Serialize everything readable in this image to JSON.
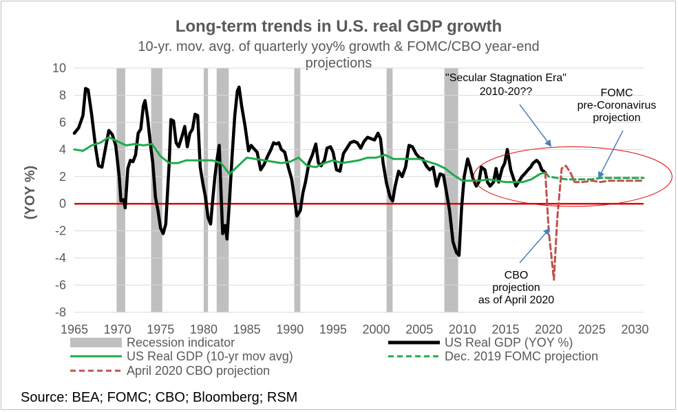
{
  "chart_data": {
    "type": "line",
    "title": "Long-term trends in U.S. real GDP growth",
    "subtitle_line1": "10-yr. mov. avg. of quarterly yoy% growth & FOMC/CBO year-end",
    "subtitle_line2": "projections",
    "ylabel": "(YOY %)",
    "xlim": [
      1965,
      2031
    ],
    "ylim": [
      -8,
      10
    ],
    "x_ticks": [
      1965,
      1970,
      1975,
      1980,
      1985,
      1990,
      1995,
      2000,
      2005,
      2010,
      2015,
      2020,
      2025,
      2030
    ],
    "y_ticks": [
      10,
      8,
      6,
      4,
      2,
      0,
      -2,
      -4,
      -6,
      -8
    ],
    "grid": "horizontal",
    "legend_position": "bottom",
    "colors": {
      "recession": "#bfbfbf",
      "gdp": "#000000",
      "movavg": "#1faa4b",
      "fomc": "#1faa4b",
      "cbo": "#c0504d",
      "zero_line": "#e00000",
      "gridline": "#d9d9d9",
      "ellipse": "#e00000",
      "arrow": "#4a7ebb"
    },
    "recessions": [
      [
        1969.9,
        1970.9
      ],
      [
        1973.9,
        1975.2
      ],
      [
        1980.0,
        1980.5
      ],
      [
        1981.5,
        1982.9
      ],
      [
        1990.5,
        1991.2
      ],
      [
        2001.2,
        2001.9
      ],
      [
        2007.9,
        2009.5
      ]
    ],
    "series": [
      {
        "name": "US Real GDP (YOY %)",
        "style": "solid-thick",
        "points": [
          [
            1965,
            5.2
          ],
          [
            1965.5,
            5.6
          ],
          [
            1966,
            6.5
          ],
          [
            1966.3,
            8.5
          ],
          [
            1966.6,
            8.4
          ],
          [
            1967,
            6.6
          ],
          [
            1967.5,
            4.0
          ],
          [
            1967.8,
            2.8
          ],
          [
            1968.2,
            2.7
          ],
          [
            1968.7,
            4.4
          ],
          [
            1969.0,
            5.4
          ],
          [
            1969.4,
            5.1
          ],
          [
            1969.8,
            4.3
          ],
          [
            1970.2,
            2.0
          ],
          [
            1970.4,
            0.2
          ],
          [
            1970.7,
            0.3
          ],
          [
            1970.9,
            -0.3
          ],
          [
            1971.2,
            2.6
          ],
          [
            1971.5,
            3.2
          ],
          [
            1971.8,
            3.1
          ],
          [
            1972.1,
            3.6
          ],
          [
            1972.4,
            5.2
          ],
          [
            1972.7,
            5.5
          ],
          [
            1973.0,
            7.2
          ],
          [
            1973.2,
            7.6
          ],
          [
            1973.5,
            6.3
          ],
          [
            1973.8,
            4.5
          ],
          [
            1974.1,
            3.0
          ],
          [
            1974.4,
            0.5
          ],
          [
            1974.7,
            -0.5
          ],
          [
            1975.0,
            -1.8
          ],
          [
            1975.3,
            -2.2
          ],
          [
            1975.6,
            -1.5
          ],
          [
            1976.0,
            3.0
          ],
          [
            1976.2,
            6.2
          ],
          [
            1976.5,
            6.1
          ],
          [
            1976.8,
            4.5
          ],
          [
            1977.1,
            4.2
          ],
          [
            1977.5,
            5.0
          ],
          [
            1977.8,
            5.7
          ],
          [
            1978.1,
            4.2
          ],
          [
            1978.4,
            5.2
          ],
          [
            1978.7,
            5.5
          ],
          [
            1979.0,
            6.6
          ],
          [
            1979.3,
            6.5
          ],
          [
            1979.6,
            2.7
          ],
          [
            1979.9,
            1.5
          ],
          [
            1980.2,
            0.5
          ],
          [
            1980.5,
            -1.0
          ],
          [
            1980.8,
            -1.5
          ],
          [
            1981.0,
            0.0
          ],
          [
            1981.3,
            2.0
          ],
          [
            1981.6,
            3.5
          ],
          [
            1981.8,
            4.3
          ],
          [
            1982.0,
            1.0
          ],
          [
            1982.2,
            -2.2
          ],
          [
            1982.5,
            -1.6
          ],
          [
            1982.7,
            -2.6
          ],
          [
            1983.0,
            0.3
          ],
          [
            1983.3,
            3.6
          ],
          [
            1983.6,
            6.5
          ],
          [
            1983.9,
            8.3
          ],
          [
            1984.1,
            8.6
          ],
          [
            1984.4,
            7.2
          ],
          [
            1984.8,
            5.7
          ],
          [
            1985.2,
            3.9
          ],
          [
            1985.5,
            4.3
          ],
          [
            1985.9,
            4.0
          ],
          [
            1986.2,
            3.8
          ],
          [
            1986.6,
            2.5
          ],
          [
            1987.0,
            2.9
          ],
          [
            1987.4,
            3.5
          ],
          [
            1987.8,
            4.0
          ],
          [
            1988.1,
            4.5
          ],
          [
            1988.4,
            4.4
          ],
          [
            1988.7,
            4.5
          ],
          [
            1989.0,
            4.0
          ],
          [
            1989.4,
            3.8
          ],
          [
            1989.8,
            2.7
          ],
          [
            1990.2,
            1.8
          ],
          [
            1990.5,
            0.5
          ],
          [
            1990.8,
            -0.9
          ],
          [
            1991.2,
            -0.5
          ],
          [
            1991.5,
            0.8
          ],
          [
            1991.8,
            1.6
          ],
          [
            1992.2,
            3.0
          ],
          [
            1992.6,
            3.6
          ],
          [
            1993.0,
            4.4
          ],
          [
            1993.3,
            3.0
          ],
          [
            1993.6,
            2.8
          ],
          [
            1994.0,
            3.2
          ],
          [
            1994.3,
            4.1
          ],
          [
            1994.7,
            4.2
          ],
          [
            1995.0,
            3.8
          ],
          [
            1995.4,
            2.5
          ],
          [
            1995.8,
            2.4
          ],
          [
            1996.2,
            3.7
          ],
          [
            1996.6,
            4.1
          ],
          [
            1997.0,
            4.5
          ],
          [
            1997.4,
            4.6
          ],
          [
            1997.8,
            4.5
          ],
          [
            1998.2,
            4.1
          ],
          [
            1998.6,
            4.6
          ],
          [
            1999.0,
            4.9
          ],
          [
            1999.4,
            4.8
          ],
          [
            1999.8,
            4.7
          ],
          [
            2000.2,
            5.2
          ],
          [
            2000.5,
            4.8
          ],
          [
            2000.8,
            3.0
          ],
          [
            2001.2,
            1.5
          ],
          [
            2001.6,
            0.5
          ],
          [
            2001.9,
            0.2
          ],
          [
            2002.2,
            1.3
          ],
          [
            2002.6,
            2.4
          ],
          [
            2003.0,
            2.0
          ],
          [
            2003.4,
            2.7
          ],
          [
            2003.8,
            4.3
          ],
          [
            2004.2,
            4.2
          ],
          [
            2004.6,
            3.7
          ],
          [
            2005.0,
            3.4
          ],
          [
            2005.4,
            3.3
          ],
          [
            2005.8,
            2.8
          ],
          [
            2006.2,
            2.5
          ],
          [
            2006.6,
            2.7
          ],
          [
            2007.0,
            1.3
          ],
          [
            2007.4,
            2.2
          ],
          [
            2007.8,
            2.1
          ],
          [
            2008.1,
            1.0
          ],
          [
            2008.5,
            -0.5
          ],
          [
            2008.9,
            -2.8
          ],
          [
            2009.3,
            -3.6
          ],
          [
            2009.6,
            -3.8
          ],
          [
            2009.9,
            -0.3
          ],
          [
            2010.2,
            2.0
          ],
          [
            2010.6,
            3.3
          ],
          [
            2010.9,
            2.7
          ],
          [
            2011.2,
            1.9
          ],
          [
            2011.6,
            1.3
          ],
          [
            2011.9,
            1.6
          ],
          [
            2012.2,
            2.7
          ],
          [
            2012.6,
            2.5
          ],
          [
            2012.9,
            1.6
          ],
          [
            2013.2,
            1.3
          ],
          [
            2013.6,
            1.6
          ],
          [
            2013.9,
            2.6
          ],
          [
            2014.2,
            1.6
          ],
          [
            2014.6,
            2.6
          ],
          [
            2014.9,
            3.0
          ],
          [
            2015.2,
            4.0
          ],
          [
            2015.6,
            2.5
          ],
          [
            2015.9,
            1.9
          ],
          [
            2016.2,
            1.3
          ],
          [
            2016.6,
            1.7
          ],
          [
            2016.9,
            2.0
          ],
          [
            2017.2,
            2.2
          ],
          [
            2017.6,
            2.5
          ],
          [
            2017.9,
            2.7
          ],
          [
            2018.2,
            3.0
          ],
          [
            2018.6,
            3.2
          ],
          [
            2018.9,
            3.0
          ],
          [
            2019.2,
            2.5
          ],
          [
            2019.6,
            2.3
          ]
        ]
      },
      {
        "name": "US Real GDP (10-yr mov avg)",
        "style": "solid",
        "points": [
          [
            1965,
            4.0
          ],
          [
            1966,
            3.9
          ],
          [
            1967,
            4.3
          ],
          [
            1968,
            4.5
          ],
          [
            1969,
            4.9
          ],
          [
            1970,
            4.6
          ],
          [
            1971,
            4.3
          ],
          [
            1972,
            4.4
          ],
          [
            1973,
            4.3
          ],
          [
            1974,
            4.4
          ],
          [
            1975,
            3.5
          ],
          [
            1976,
            3.0
          ],
          [
            1977,
            3.0
          ],
          [
            1978,
            3.2
          ],
          [
            1979,
            3.2
          ],
          [
            1980,
            3.2
          ],
          [
            1981,
            3.2
          ],
          [
            1982,
            3.0
          ],
          [
            1983,
            2.2
          ],
          [
            1984,
            2.8
          ],
          [
            1985,
            3.4
          ],
          [
            1986,
            3.3
          ],
          [
            1987,
            3.2
          ],
          [
            1988,
            3.1
          ],
          [
            1989,
            3.0
          ],
          [
            1990,
            3.1
          ],
          [
            1991,
            3.4
          ],
          [
            1992,
            2.8
          ],
          [
            1993,
            2.7
          ],
          [
            1994,
            3.0
          ],
          [
            1995,
            3.2
          ],
          [
            1996,
            3.0
          ],
          [
            1997,
            3.1
          ],
          [
            1998,
            3.2
          ],
          [
            1999,
            3.4
          ],
          [
            2000,
            3.4
          ],
          [
            2001,
            3.6
          ],
          [
            2002,
            3.3
          ],
          [
            2003,
            3.3
          ],
          [
            2004,
            3.3
          ],
          [
            2005,
            3.3
          ],
          [
            2006,
            3.1
          ],
          [
            2007,
            2.9
          ],
          [
            2008,
            2.6
          ],
          [
            2009,
            2.1
          ],
          [
            2010,
            1.7
          ],
          [
            2011,
            1.7
          ],
          [
            2012,
            1.7
          ],
          [
            2013,
            1.8
          ],
          [
            2014,
            1.7
          ],
          [
            2015,
            1.6
          ],
          [
            2016,
            1.6
          ],
          [
            2017,
            1.6
          ],
          [
            2018,
            1.8
          ],
          [
            2019,
            2.2
          ],
          [
            2019.6,
            2.3
          ]
        ]
      },
      {
        "name": "Dec. 2019 FOMC projection",
        "style": "dashed",
        "points": [
          [
            2019.6,
            2.3
          ],
          [
            2020,
            2.0
          ],
          [
            2021,
            1.9
          ],
          [
            2022,
            1.8
          ],
          [
            2023,
            1.8
          ],
          [
            2024,
            1.8
          ],
          [
            2025,
            1.8
          ],
          [
            2026,
            1.9
          ],
          [
            2027,
            1.9
          ],
          [
            2028,
            1.9
          ],
          [
            2029,
            1.9
          ],
          [
            2030,
            1.9
          ],
          [
            2031,
            1.9
          ]
        ]
      },
      {
        "name": "April 2020 CBO projection",
        "style": "dashed",
        "points": [
          [
            2019.6,
            2.3
          ],
          [
            2020.0,
            -2.0
          ],
          [
            2020.6,
            -5.6
          ],
          [
            2021.0,
            -1.0
          ],
          [
            2021.5,
            2.6
          ],
          [
            2022.0,
            2.8
          ],
          [
            2022.6,
            2.2
          ],
          [
            2023.0,
            1.6
          ],
          [
            2024.0,
            1.6
          ],
          [
            2025.0,
            1.7
          ],
          [
            2026.0,
            1.6
          ],
          [
            2027.0,
            1.7
          ],
          [
            2028.0,
            1.7
          ],
          [
            2029.0,
            1.7
          ],
          [
            2030.0,
            1.7
          ],
          [
            2031.0,
            1.7
          ]
        ]
      }
    ],
    "legend": [
      {
        "label": "Recession indicator",
        "swatch": "bar"
      },
      {
        "label": "US Real GDP (YOY %)",
        "swatch": "thick-line"
      },
      {
        "label": "US Real GDP (10-yr mov avg)",
        "swatch": "line"
      },
      {
        "label": "Dec. 2019 FOMC projection",
        "swatch": "dash-green"
      },
      {
        "label": "April 2020 CBO projection",
        "swatch": "dash-red"
      }
    ],
    "annotations": {
      "secular": [
        "\"Secular Stagnation Era\"",
        "2010-20??"
      ],
      "fomc": [
        "FOMC",
        "pre-Coronavirus",
        "projection"
      ],
      "cbo": [
        "CBO",
        "projection",
        "as of April 2020"
      ]
    },
    "highlight_ellipse": {
      "x_center": 2022.8,
      "y_center": 2.0,
      "x_radius": 11.5,
      "y_radius": 2.2
    }
  },
  "source": "Source: BEA; FOMC; CBO; Bloomberg; RSM"
}
